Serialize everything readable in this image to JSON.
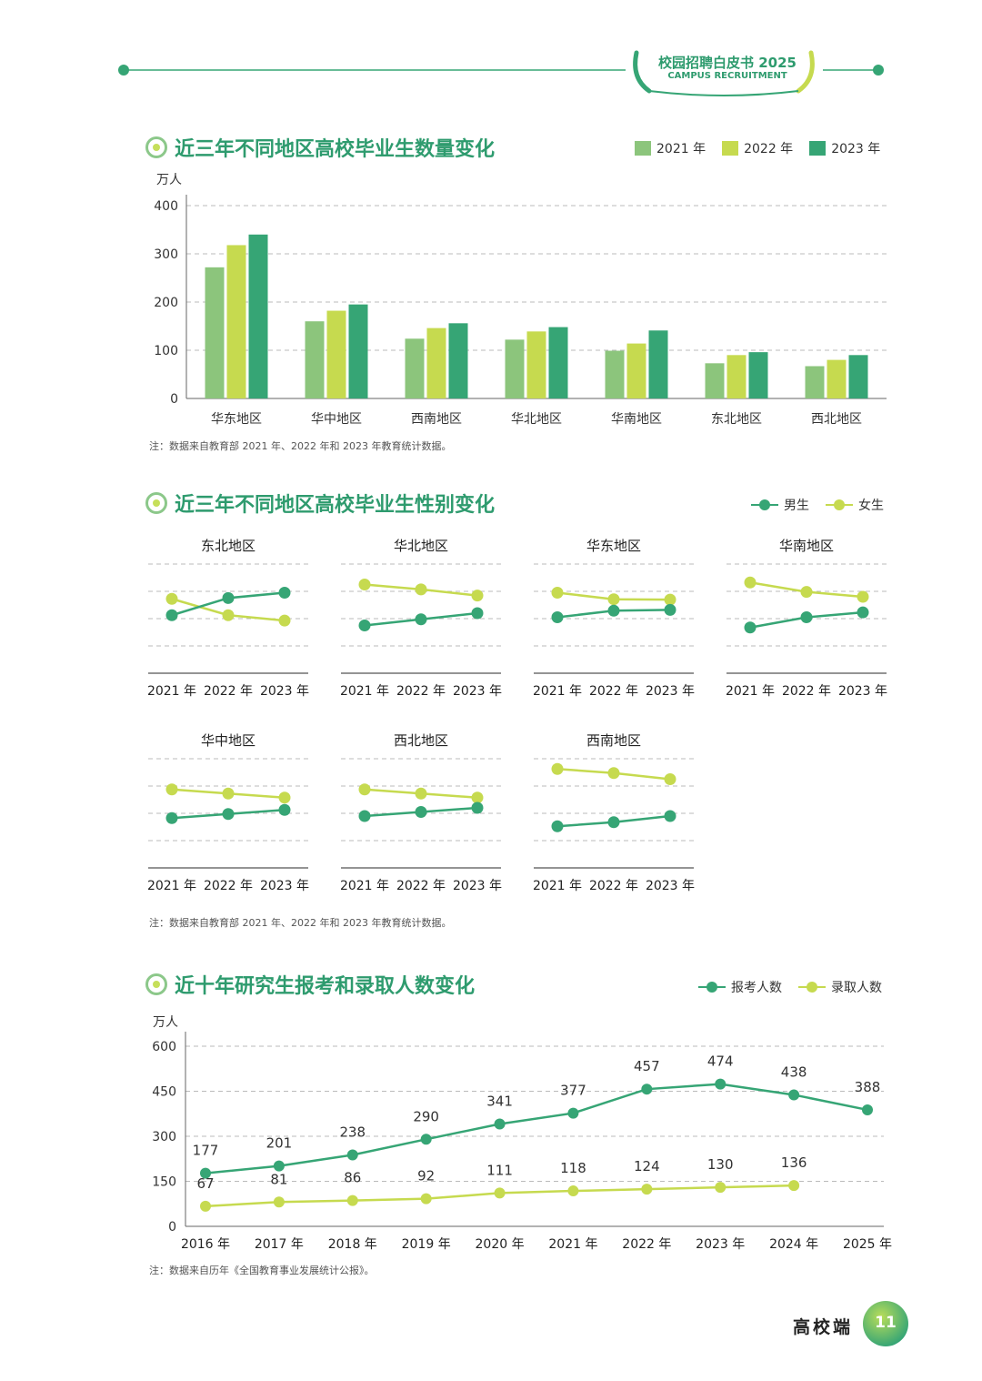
{
  "header": {
    "title": "校园招聘白皮书 2025",
    "subtitle": "CAMPUS RECRUITMENT"
  },
  "colors": {
    "c2021": "#8cc57c",
    "c2022": "#c6da4f",
    "c2023": "#36a575",
    "male": "#36a575",
    "female": "#c6da4f",
    "accent": "#2e9b6e"
  },
  "section1": {
    "title": "近三年不同地区高校毕业生数量变化",
    "note": "注：数据来自教育部 2021 年、2022 年和 2023 年教育统计数据。"
  },
  "section2": {
    "title": "近三年不同地区高校毕业生性别变化",
    "note": "注：数据来自教育部 2021 年、2022 年和 2023 年教育统计数据。"
  },
  "section3": {
    "title": "近十年研究生报考和录取人数变化",
    "note": "注：数据来自历年《全国教育事业发展统计公报》。"
  },
  "footer": {
    "label": "高校端",
    "page": "11"
  },
  "chart_data": [
    {
      "type": "bar",
      "ylabel": "万人",
      "ylim": [
        0,
        400
      ],
      "yticks": [
        0,
        100,
        200,
        300,
        400
      ],
      "grid": true,
      "legend_position": "top-right",
      "categories": [
        "华东地区",
        "华中地区",
        "西南地区",
        "华北地区",
        "华南地区",
        "东北地区",
        "西北地区"
      ],
      "series": [
        {
          "name": "2021 年",
          "values": [
            272,
            160,
            124,
            122,
            99,
            73,
            67
          ]
        },
        {
          "name": "2022 年",
          "values": [
            318,
            182,
            146,
            139,
            114,
            90,
            80
          ]
        },
        {
          "name": "2023 年",
          "values": [
            340,
            195,
            156,
            148,
            141,
            96,
            90
          ]
        }
      ]
    },
    {
      "type": "line",
      "legend_position": "top-right",
      "series_names": [
        "男生",
        "女生"
      ],
      "x": [
        "2021 年",
        "2022 年",
        "2023 年"
      ],
      "panels": [
        {
          "title": "东北地区",
          "male": [
            47.5,
            51.7,
            53.0
          ],
          "female": [
            51.5,
            47.5,
            46.2
          ]
        },
        {
          "title": "华北地区",
          "male": [
            45.0,
            46.5,
            48.0
          ],
          "female": [
            55.0,
            53.8,
            52.3
          ]
        },
        {
          "title": "华东地区",
          "male": [
            47.0,
            48.6,
            48.8
          ],
          "female": [
            53.0,
            51.4,
            51.3
          ]
        },
        {
          "title": "华南地区",
          "male": [
            44.5,
            47.0,
            48.2
          ],
          "female": [
            55.5,
            53.2,
            52.0
          ]
        },
        {
          "title": "华中地区",
          "male": [
            45.5,
            46.5,
            47.5
          ],
          "female": [
            52.5,
            51.5,
            50.5
          ]
        },
        {
          "title": "西北地区",
          "male": [
            46.0,
            47.0,
            48.0
          ],
          "female": [
            52.5,
            51.5,
            50.5
          ]
        },
        {
          "title": "西南地区",
          "male": [
            43.5,
            44.5,
            46.0
          ],
          "female": [
            57.5,
            56.5,
            55.0
          ]
        }
      ]
    },
    {
      "type": "line",
      "ylabel": "万人",
      "ylim": [
        0,
        600
      ],
      "yticks": [
        0,
        150,
        300,
        450,
        600
      ],
      "grid": true,
      "legend_position": "top-right",
      "x": [
        "2016 年",
        "2017 年",
        "2018 年",
        "2019 年",
        "2020 年",
        "2021 年",
        "2022 年",
        "2023 年",
        "2024 年",
        "2025 年"
      ],
      "series": [
        {
          "name": "报考人数",
          "values": [
            177,
            201,
            238,
            290,
            341,
            377,
            457,
            474,
            438,
            388
          ]
        },
        {
          "name": "录取人数",
          "values": [
            67,
            81,
            86,
            92,
            111,
            118,
            124,
            130,
            136,
            null
          ]
        }
      ]
    }
  ]
}
